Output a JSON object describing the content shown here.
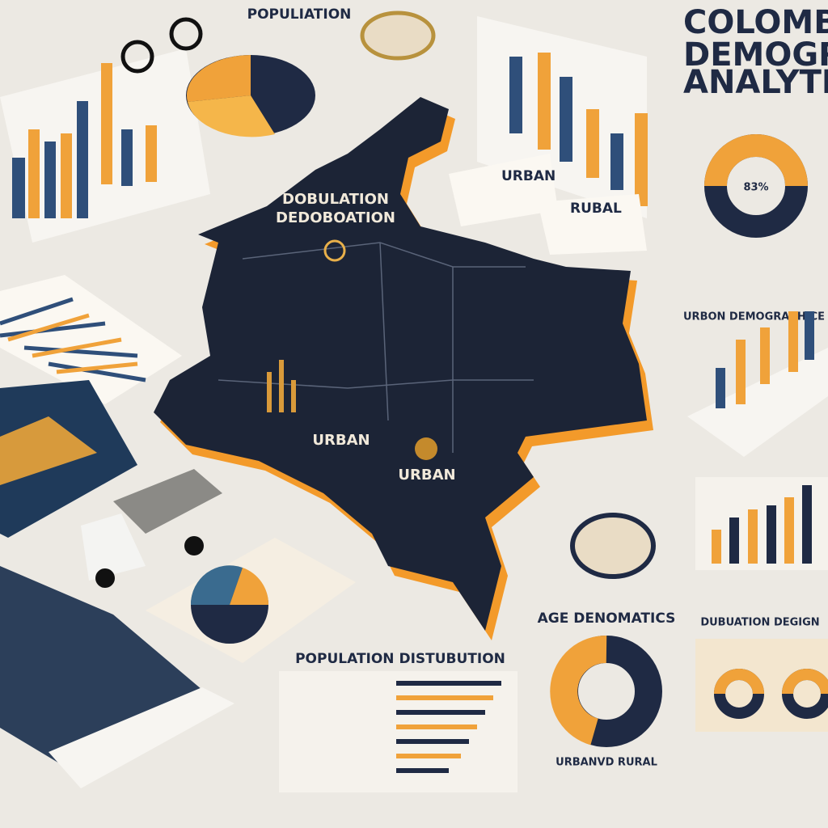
{
  "header": {
    "title": [
      "COLOMBI",
      "DEMOGRAT",
      "ANALYTIC"
    ]
  },
  "top_label": "POPULIATION",
  "map": {
    "labels": [
      "DOBULATION",
      "DEDOBOATION",
      "URBAN",
      "URBAN"
    ]
  },
  "panels": {
    "urban": "URBAN",
    "rural": "RUBAL",
    "donut_value": "83%",
    "urban_demographics": "URBON DEMOGRAPHICE",
    "population_distribution": "POPULATION DISTUBUTION",
    "age_demographics": "AGE DENOMATICS",
    "urban_rural": "URBANVD RURAL",
    "population_design": "DUBUATION DEGIGN"
  }
}
